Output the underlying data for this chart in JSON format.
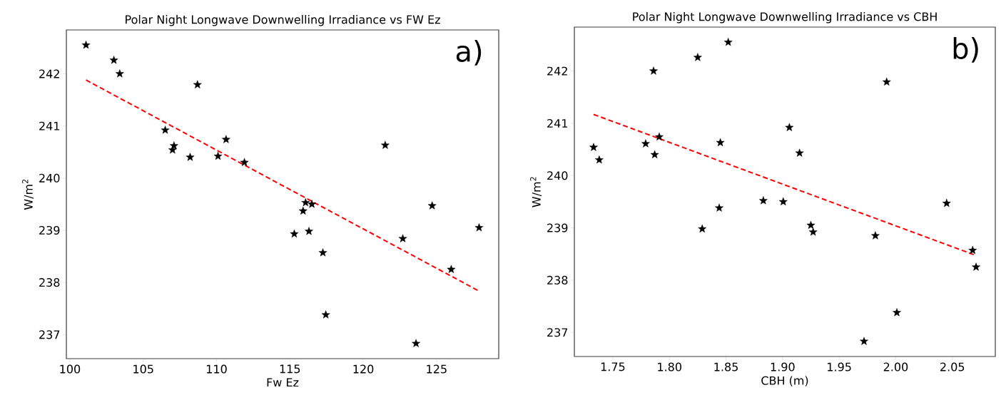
{
  "chart_data": [
    {
      "type": "scatter",
      "title": "Polar Night Longwave Downwelling Irradiance vs FW Ez",
      "xlabel": "Fw Ez",
      "ylabel": "W/m$^{2}$",
      "annotations": [
        "a)"
      ],
      "xlim": [
        99.76,
        129.24
      ],
      "ylim": [
        236.54,
        242.84
      ],
      "xticks": [
        100,
        105,
        110,
        115,
        120,
        125
      ],
      "yticks": [
        237,
        238,
        239,
        240,
        241,
        242
      ],
      "series": [
        {
          "marker": "star",
          "color": "#000000",
          "x": [
            101.1,
            103.0,
            103.4,
            108.7,
            106.5,
            107.1,
            107.0,
            108.2,
            110.1,
            110.65,
            111.9,
            121.5,
            116.07,
            116.5,
            115.9,
            115.3,
            116.3,
            117.25,
            117.45,
            123.6,
            122.7,
            124.7,
            126.0,
            127.9
          ],
          "values": [
            242.55,
            242.26,
            242.0,
            241.79,
            240.92,
            240.62,
            240.54,
            240.4,
            240.42,
            240.74,
            240.3,
            240.63,
            239.53,
            239.5,
            239.37,
            238.93,
            238.98,
            238.57,
            237.38,
            236.83,
            238.84,
            239.47,
            238.25,
            239.05
          ]
        },
        {
          "type": "line",
          "line_style": "dashed",
          "color": "#ff0000",
          "x": [
            101.1,
            127.8
          ],
          "values": [
            241.88,
            237.85
          ]
        }
      ]
    },
    {
      "type": "scatter",
      "title": "Polar Night Longwave Downwelling Irradiance vs CBH",
      "xlabel": "CBH (m)",
      "ylabel": "W/m$^{2}$",
      "annotations": [
        "b)"
      ],
      "xlim": [
        1.716,
        2.088
      ],
      "ylim": [
        236.54,
        242.84
      ],
      "xticks": [
        {
          "value": 1.75,
          "label": "1.75"
        },
        {
          "value": 1.8,
          "label": "1.80"
        },
        {
          "value": 1.85,
          "label": "1.85"
        },
        {
          "value": 1.9,
          "label": "1.90"
        },
        {
          "value": 1.95,
          "label": "1.95"
        },
        {
          "value": 2.0,
          "label": "2.00"
        },
        {
          "value": 2.05,
          "label": "2.05"
        }
      ],
      "yticks": [
        237,
        238,
        239,
        240,
        241,
        242
      ],
      "series": [
        {
          "marker": "star",
          "color": "#000000",
          "x": [
            1.733,
            1.738,
            1.786,
            1.779,
            1.787,
            1.791,
            1.825,
            1.852,
            1.845,
            1.829,
            1.844,
            1.883,
            1.9006,
            1.906,
            1.915,
            1.925,
            1.927,
            1.992,
            1.982,
            2.001,
            1.972,
            2.045,
            2.068,
            2.071
          ],
          "values": [
            240.54,
            240.3,
            242.0,
            240.61,
            240.4,
            240.74,
            242.26,
            242.55,
            240.63,
            238.98,
            239.38,
            239.52,
            239.5,
            240.92,
            240.43,
            239.05,
            238.92,
            241.79,
            238.85,
            237.38,
            236.83,
            239.47,
            238.57,
            238.25
          ]
        },
        {
          "type": "line",
          "line_style": "dashed",
          "color": "#ff0000",
          "x": [
            1.733,
            2.07
          ],
          "values": [
            241.17,
            238.48
          ]
        }
      ]
    }
  ]
}
